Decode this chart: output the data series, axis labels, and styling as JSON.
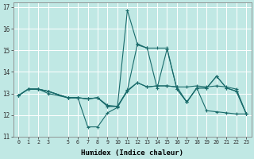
{
  "xlabel": "Humidex (Indice chaleur)",
  "bg_color": "#c0e8e4",
  "grid_color": "#ffffff",
  "line_color": "#1a6b6b",
  "xlim": [
    0,
    23
  ],
  "ylim": [
    11,
    17
  ],
  "yticks": [
    11,
    12,
    13,
    14,
    15,
    16,
    17
  ],
  "xticks": [
    0,
    1,
    2,
    3,
    5,
    6,
    7,
    8,
    9,
    10,
    11,
    12,
    13,
    14,
    15,
    16,
    17,
    18,
    19,
    20,
    21,
    22,
    23
  ],
  "xtick_labels": [
    "0",
    "1",
    "2",
    "3",
    "5",
    "6",
    "7",
    "8",
    "9",
    "10",
    "11",
    "12",
    "13",
    "14",
    "15",
    "16",
    "17",
    "18",
    "19",
    "20",
    "21",
    "22",
    "23"
  ],
  "lines": [
    [
      12.9,
      13.2,
      13.2,
      13.1,
      12.8,
      12.8,
      11.45,
      11.45,
      12.1,
      12.35,
      13.15,
      15.25,
      15.1,
      13.25,
      15.05,
      13.2,
      12.6,
      13.25,
      13.25,
      13.8,
      13.25,
      13.1,
      12.05
    ],
    [
      12.9,
      13.2,
      13.2,
      13.1,
      12.8,
      12.8,
      12.75,
      12.8,
      12.45,
      12.4,
      13.15,
      13.5,
      13.3,
      13.35,
      13.35,
      13.3,
      13.3,
      13.35,
      13.3,
      13.35,
      13.3,
      13.2,
      12.05
    ],
    [
      12.9,
      13.2,
      13.2,
      13.0,
      12.8,
      12.8,
      12.75,
      12.8,
      12.4,
      12.4,
      13.1,
      13.5,
      13.3,
      13.35,
      13.35,
      13.3,
      12.6,
      13.25,
      12.2,
      12.15,
      12.1,
      12.05,
      12.05
    ],
    [
      12.9,
      13.2,
      13.2,
      13.1,
      12.8,
      12.8,
      12.75,
      12.8,
      12.4,
      12.4,
      16.85,
      15.3,
      15.1,
      15.1,
      15.1,
      13.2,
      12.6,
      13.25,
      13.25,
      13.8,
      13.25,
      13.1,
      12.05
    ]
  ],
  "line_x": [
    0,
    1,
    2,
    3,
    5,
    6,
    7,
    8,
    9,
    10,
    11,
    12,
    13,
    14,
    15,
    16,
    17,
    18,
    19,
    20,
    21,
    22,
    23
  ]
}
